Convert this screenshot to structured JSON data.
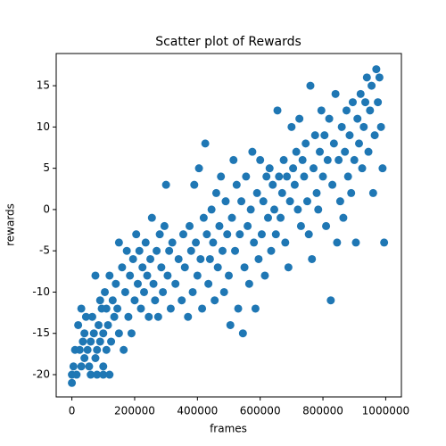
{
  "chart_data": {
    "type": "scatter",
    "title": "Scatter plot of Rewards",
    "xlabel": "frames",
    "ylabel": "rewards",
    "xlim": [
      -50000,
      1050000
    ],
    "ylim": [
      -22.7,
      18.9
    ],
    "xticks": [
      0,
      200000,
      400000,
      600000,
      800000,
      1000000
    ],
    "yticks": [
      -20,
      -15,
      -10,
      -5,
      0,
      5,
      10,
      15
    ],
    "grid": false,
    "series": [
      {
        "color": "#1f77b4",
        "x": [
          0,
          0,
          5000,
          10000,
          15000,
          20000,
          25000,
          30000,
          35000,
          40000,
          40000,
          45000,
          50000,
          55000,
          60000,
          60000,
          65000,
          70000,
          75000,
          80000,
          80000,
          85000,
          90000,
          95000,
          100000,
          100000,
          105000,
          110000,
          115000,
          120000,
          125000,
          130000,
          135000,
          140000,
          145000,
          150000,
          150000,
          75000,
          30000,
          100000,
          120000,
          90000,
          110000,
          160000,
          165000,
          170000,
          175000,
          180000,
          185000,
          190000,
          195000,
          200000,
          205000,
          210000,
          215000,
          220000,
          225000,
          230000,
          235000,
          240000,
          245000,
          250000,
          255000,
          260000,
          265000,
          270000,
          275000,
          280000,
          285000,
          290000,
          295000,
          300000,
          305000,
          310000,
          315000,
          320000,
          330000,
          340000,
          350000,
          355000,
          360000,
          370000,
          375000,
          380000,
          385000,
          390000,
          395000,
          400000,
          405000,
          410000,
          415000,
          420000,
          425000,
          430000,
          435000,
          440000,
          445000,
          450000,
          455000,
          460000,
          465000,
          470000,
          475000,
          480000,
          485000,
          490000,
          495000,
          500000,
          505000,
          510000,
          515000,
          520000,
          525000,
          530000,
          535000,
          540000,
          545000,
          550000,
          555000,
          560000,
          565000,
          570000,
          575000,
          580000,
          585000,
          590000,
          595000,
          600000,
          605000,
          610000,
          615000,
          620000,
          625000,
          630000,
          635000,
          640000,
          645000,
          650000,
          655000,
          660000,
          665000,
          670000,
          675000,
          680000,
          685000,
          690000,
          695000,
          700000,
          705000,
          710000,
          715000,
          720000,
          725000,
          730000,
          735000,
          740000,
          745000,
          750000,
          755000,
          760000,
          765000,
          770000,
          775000,
          780000,
          785000,
          790000,
          795000,
          800000,
          805000,
          810000,
          815000,
          820000,
          825000,
          830000,
          835000,
          840000,
          845000,
          850000,
          855000,
          860000,
          865000,
          870000,
          875000,
          880000,
          885000,
          890000,
          895000,
          900000,
          905000,
          910000,
          915000,
          920000,
          925000,
          930000,
          935000,
          940000,
          945000,
          950000,
          955000,
          960000,
          965000,
          970000,
          975000,
          980000,
          985000,
          990000,
          995000
        ],
        "values": [
          -21,
          -20,
          -19,
          -17,
          -20,
          -14,
          -17,
          -19,
          -16,
          -18,
          -15,
          -13,
          -17,
          -19,
          -16,
          -20,
          -13,
          -15,
          -18,
          -17,
          -20,
          -14,
          -16,
          -12,
          -19,
          -15,
          -10,
          -12,
          -14,
          -8,
          -16,
          -11,
          -13,
          -9,
          -12,
          -4,
          -15,
          -8,
          -12,
          -20,
          -20,
          -11,
          -17,
          -7,
          -17,
          -10,
          -5,
          -13,
          -8,
          -15,
          -6,
          -11,
          -3,
          -9,
          -5,
          -12,
          -7,
          -10,
          -4,
          -8,
          -13,
          -6,
          -1,
          -9,
          -11,
          -5,
          -13,
          -3,
          -7,
          -10,
          -2,
          3,
          -8,
          -5,
          -12,
          -4,
          -9,
          -6,
          -11,
          -3,
          -7,
          -13,
          -2,
          -5,
          -10,
          3,
          -4,
          -8,
          5,
          -6,
          -12,
          -1,
          8,
          -3,
          -9,
          -6,
          0,
          -4,
          -11,
          2,
          -7,
          -2,
          4,
          -5,
          -10,
          1,
          -3,
          -8,
          -14,
          -1,
          6,
          -5,
          3,
          -12,
          -3,
          1,
          -15,
          -7,
          4,
          -2,
          -9,
          0,
          7,
          -4,
          -12,
          2,
          -6,
          6,
          -3,
          1,
          -8,
          4,
          -1,
          5,
          -5,
          3,
          0,
          -3,
          12,
          4,
          -1,
          2,
          6,
          -4,
          4,
          -7,
          1,
          10,
          5,
          3,
          7,
          0,
          11,
          -2,
          6,
          4,
          8,
          1,
          -3,
          15,
          -6,
          5,
          9,
          2,
          0,
          7,
          12,
          4,
          9,
          -2,
          6,
          11,
          -11,
          3,
          8,
          14,
          -4,
          6,
          1,
          10,
          -1,
          7,
          12,
          4,
          9,
          2,
          13,
          6,
          -4,
          11,
          8,
          14,
          5,
          10,
          13,
          16,
          7,
          12,
          15,
          2,
          9,
          17,
          13,
          16,
          10,
          5,
          -4
        ]
      }
    ]
  }
}
